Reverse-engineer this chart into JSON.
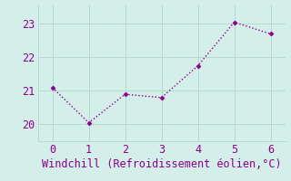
{
  "x": [
    0,
    1,
    2,
    3,
    4,
    5,
    6
  ],
  "y": [
    21.1,
    20.05,
    20.9,
    20.8,
    21.75,
    23.05,
    22.7
  ],
  "line_color": "#8b008b",
  "marker_color": "#8b008b",
  "bg_color": "#d4eeea",
  "grid_color": "#b8d8d4",
  "axis_color": "#8b008b",
  "tick_color": "#8b008b",
  "xlabel": "Windchill (Refroidissement éolien,°C)",
  "xlabel_color": "#8b008b",
  "xlim": [
    -0.4,
    6.4
  ],
  "ylim": [
    19.5,
    23.55
  ],
  "yticks": [
    20,
    21,
    22,
    23
  ],
  "xticks": [
    0,
    1,
    2,
    3,
    4,
    5,
    6
  ],
  "font_family": "monospace",
  "font_size": 8.5
}
